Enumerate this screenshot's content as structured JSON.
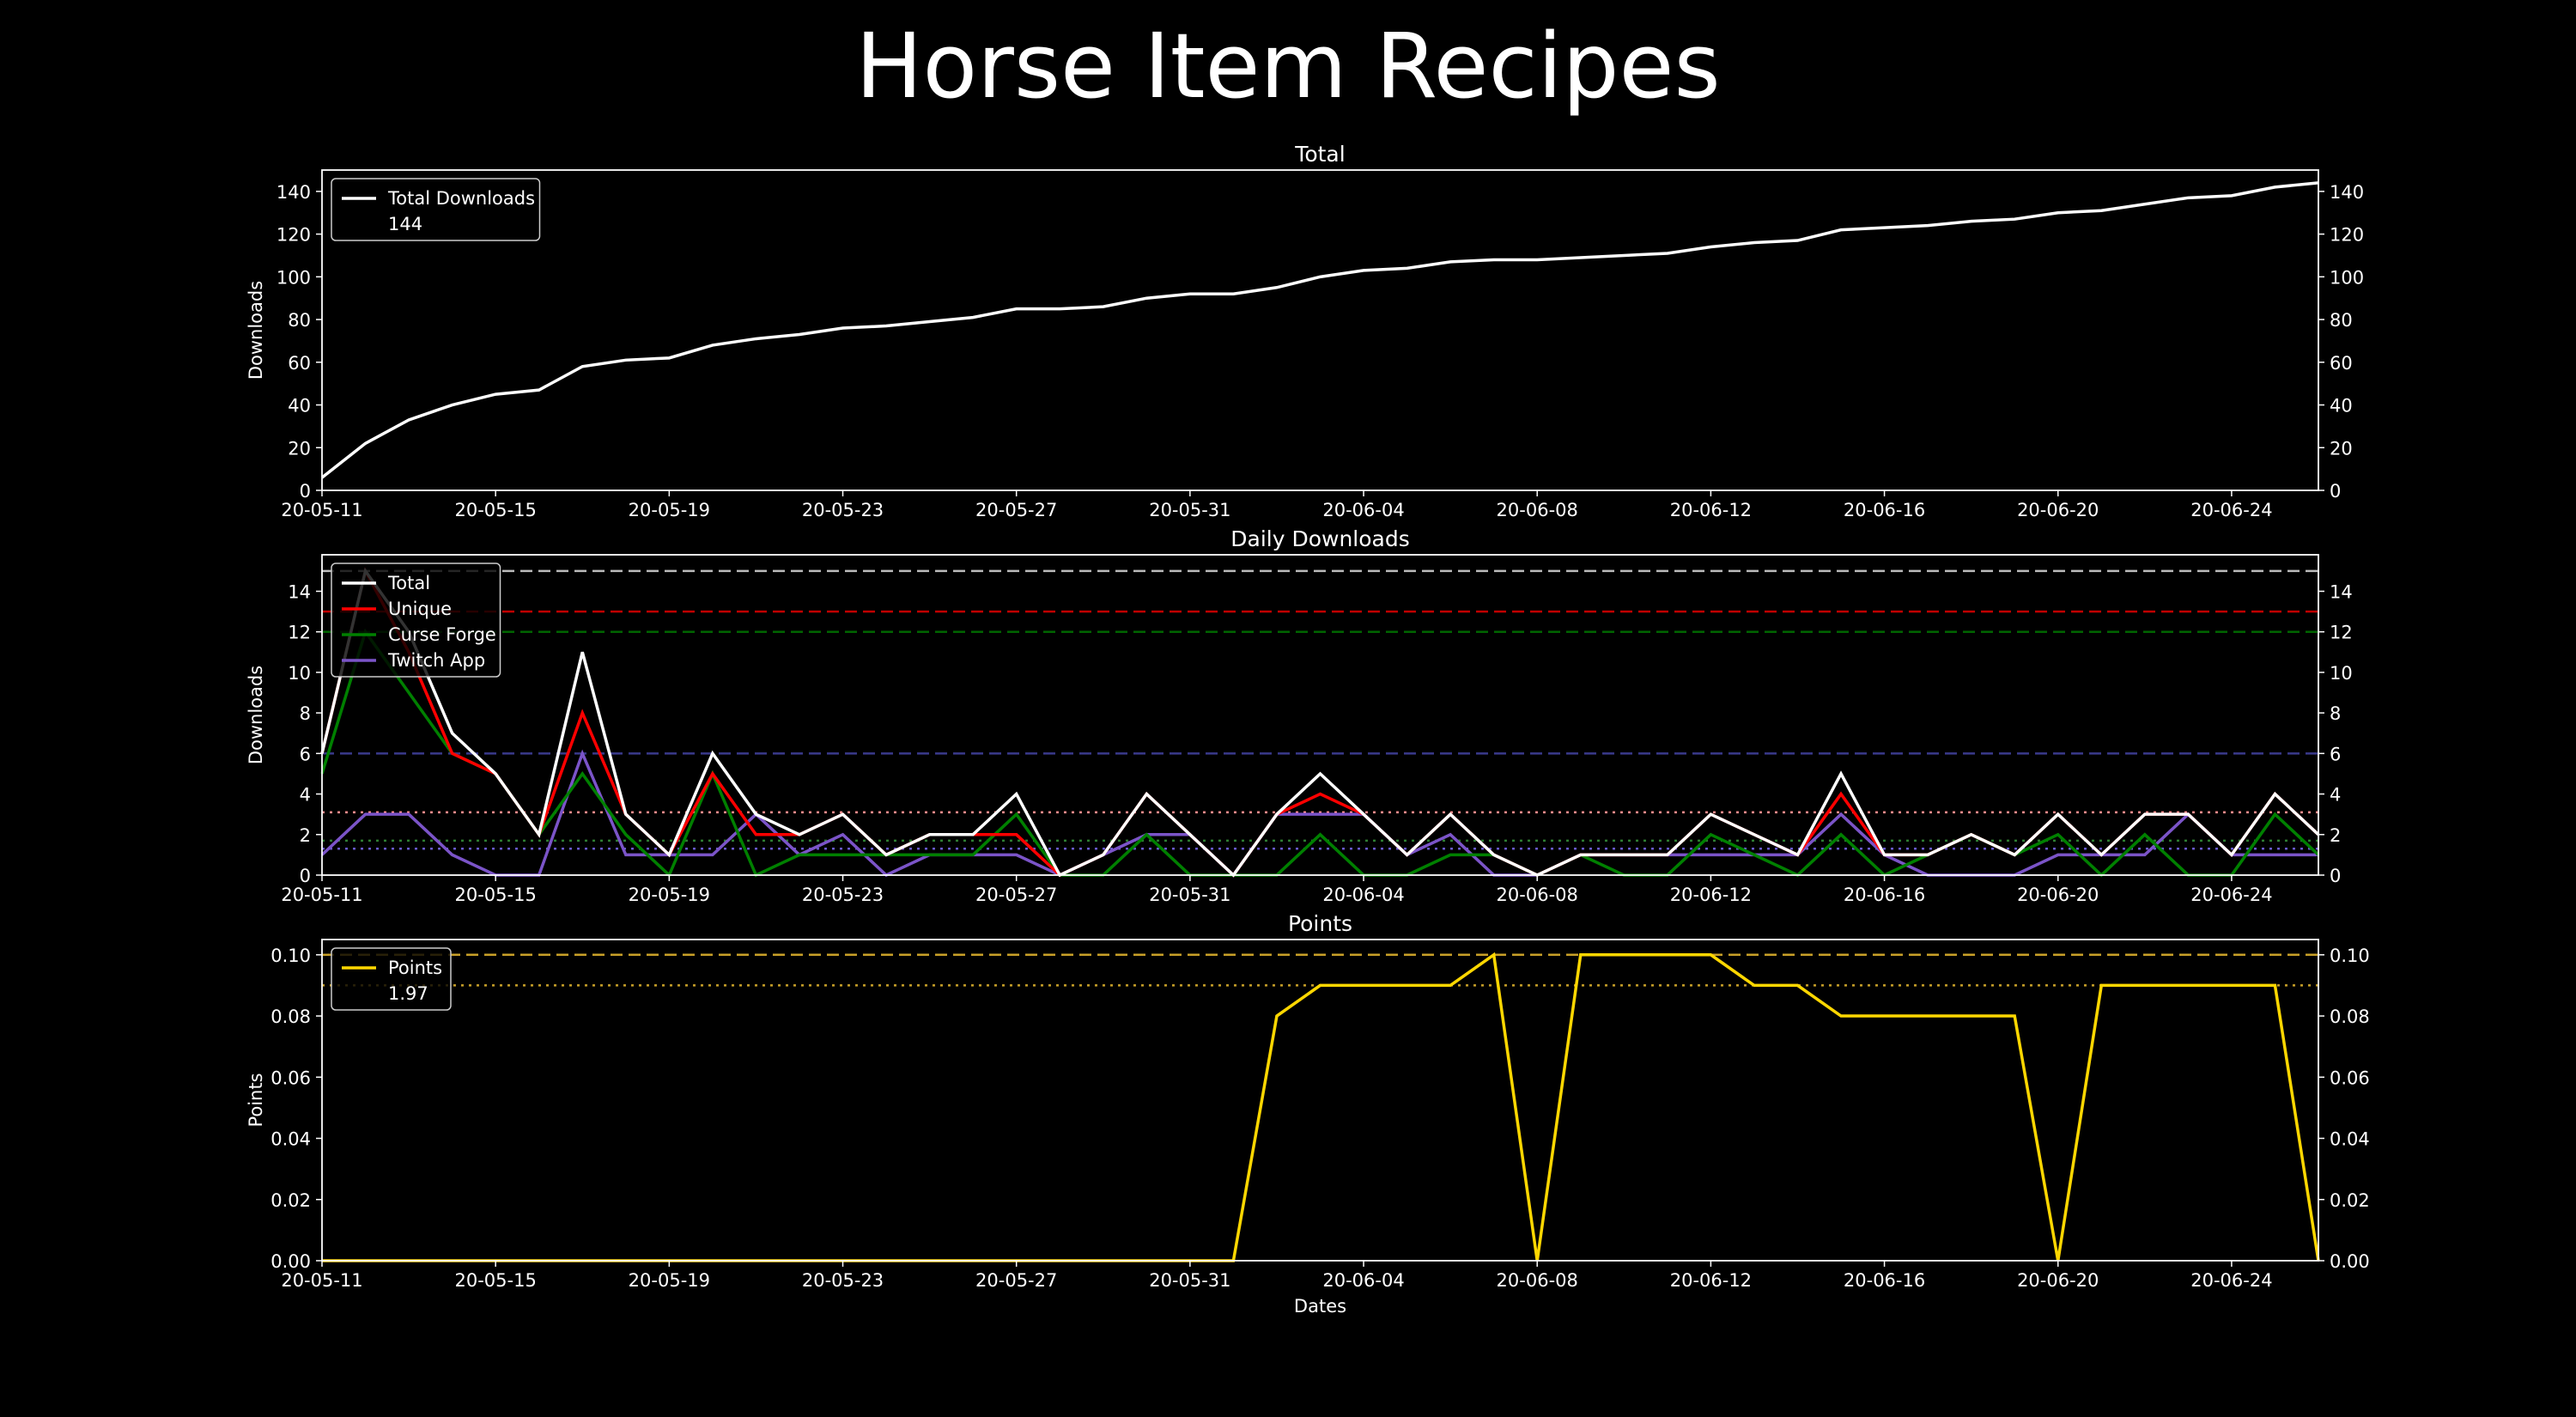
{
  "figure_title": "Horse Item Recipes",
  "chart_data": [
    {
      "type": "line",
      "title": "Total",
      "ylabel": "Downloads",
      "xlabel": "",
      "x_start": "2020-05-11",
      "x_end": "2020-06-26",
      "x_tick_labels": [
        "20-05-11",
        "20-05-15",
        "20-05-19",
        "20-05-23",
        "20-05-27",
        "20-05-31",
        "20-06-04",
        "20-06-08",
        "20-06-12",
        "20-06-16",
        "20-06-20",
        "20-06-24"
      ],
      "ylim": [
        0,
        150
      ],
      "y_ticks": [
        "0",
        "20",
        "40",
        "60",
        "80",
        "100",
        "120",
        "140"
      ],
      "legend": {
        "position": "upper-left",
        "entries": [
          {
            "label": "Total Downloads",
            "value": "144",
            "color": "#ffffff"
          }
        ]
      },
      "series": [
        {
          "name": "Total Downloads",
          "color": "#ffffff",
          "values": [
            6,
            22,
            33,
            40,
            45,
            47,
            58,
            61,
            62,
            68,
            71,
            73,
            76,
            77,
            79,
            81,
            85,
            85,
            86,
            90,
            92,
            92,
            95,
            100,
            103,
            104,
            107,
            108,
            108,
            109,
            110,
            111,
            114,
            116,
            117,
            122,
            123,
            124,
            126,
            127,
            130,
            131,
            134,
            137,
            138,
            142,
            144
          ]
        }
      ],
      "reference_lines": []
    },
    {
      "type": "line",
      "title": "Daily Downloads",
      "ylabel": "Downloads",
      "xlabel": "",
      "x_start": "2020-05-11",
      "x_end": "2020-06-26",
      "x_tick_labels": [
        "20-05-11",
        "20-05-15",
        "20-05-19",
        "20-05-23",
        "20-05-27",
        "20-05-31",
        "20-06-04",
        "20-06-08",
        "20-06-12",
        "20-06-16",
        "20-06-20",
        "20-06-24"
      ],
      "ylim": [
        0,
        15.8
      ],
      "y_ticks": [
        "0",
        "2",
        "4",
        "6",
        "8",
        "10",
        "12",
        "14"
      ],
      "legend": {
        "position": "upper-left",
        "entries": [
          {
            "label": "Total",
            "color": "#ffffff"
          },
          {
            "label": "Unique",
            "color": "#ff0000"
          },
          {
            "label": "Curse Forge",
            "color": "#008000"
          },
          {
            "label": "Twitch App",
            "color": "#7b54c8"
          }
        ]
      },
      "series": [
        {
          "name": "Twitch App",
          "color": "#7b54c8",
          "values": [
            1,
            3,
            3,
            1,
            0,
            0,
            6,
            1,
            1,
            1,
            3,
            1,
            2,
            0,
            1,
            1,
            1,
            0,
            1,
            2,
            2,
            0,
            3,
            3,
            3,
            1,
            2,
            0,
            0,
            1,
            1,
            1,
            1,
            1,
            1,
            3,
            1,
            0,
            0,
            0,
            1,
            1,
            1,
            3,
            1,
            1,
            1
          ]
        },
        {
          "name": "Curse Forge",
          "color": "#008000",
          "values": [
            5,
            12,
            9,
            6,
            5,
            2,
            5,
            2,
            0,
            5,
            0,
            1,
            1,
            1,
            1,
            1,
            3,
            0,
            0,
            2,
            0,
            0,
            0,
            2,
            0,
            0,
            1,
            1,
            0,
            1,
            0,
            0,
            2,
            1,
            0,
            2,
            0,
            1,
            2,
            1,
            2,
            0,
            2,
            0,
            0,
            3,
            1
          ]
        },
        {
          "name": "Unique",
          "color": "#ff0000",
          "values": [
            6,
            15,
            11,
            6,
            5,
            2,
            8,
            3,
            1,
            5,
            2,
            2,
            3,
            1,
            2,
            2,
            2,
            0,
            1,
            4,
            2,
            0,
            3,
            4,
            3,
            1,
            3,
            1,
            0,
            1,
            1,
            1,
            3,
            2,
            1,
            4,
            1,
            1,
            2,
            1,
            3,
            1,
            3,
            3,
            1,
            4,
            2
          ]
        },
        {
          "name": "Total",
          "color": "#ffffff",
          "values": [
            6,
            15,
            12,
            7,
            5,
            2,
            11,
            3,
            1,
            6,
            3,
            2,
            3,
            1,
            2,
            2,
            4,
            0,
            1,
            4,
            2,
            0,
            3,
            5,
            3,
            1,
            3,
            1,
            0,
            1,
            1,
            1,
            3,
            2,
            1,
            5,
            1,
            1,
            2,
            1,
            3,
            1,
            3,
            3,
            1,
            4,
            2
          ]
        }
      ],
      "reference_lines": [
        {
          "value": 15,
          "color": "#bbbbbb",
          "style": "dashed"
        },
        {
          "value": 13,
          "color": "#c00000",
          "style": "dashed"
        },
        {
          "value": 12,
          "color": "#006400",
          "style": "dashed"
        },
        {
          "value": 6,
          "color": "#3a3a8c",
          "style": "dashed"
        },
        {
          "value": 3.1,
          "color": "#ff8c8c",
          "style": "dotted"
        },
        {
          "value": 1.7,
          "color": "#2e7d32",
          "style": "dotted"
        },
        {
          "value": 1.3,
          "color": "#6a5acd",
          "style": "dotted"
        }
      ]
    },
    {
      "type": "line",
      "title": "Points",
      "ylabel": "Points",
      "xlabel": "Dates",
      "x_start": "2020-05-11",
      "x_end": "2020-06-26",
      "x_tick_labels": [
        "20-05-11",
        "20-05-15",
        "20-05-19",
        "20-05-23",
        "20-05-27",
        "20-05-31",
        "20-06-04",
        "20-06-08",
        "20-06-12",
        "20-06-16",
        "20-06-20",
        "20-06-24"
      ],
      "ylim": [
        0,
        0.105
      ],
      "y_ticks": [
        "0.00",
        "0.02",
        "0.04",
        "0.06",
        "0.08",
        "0.10"
      ],
      "legend": {
        "position": "upper-left",
        "entries": [
          {
            "label": "Points",
            "value": "1.97",
            "color": "#ffd700"
          }
        ]
      },
      "series": [
        {
          "name": "Points",
          "color": "#ffd700",
          "values": [
            0,
            0,
            0,
            0,
            0,
            0,
            0,
            0,
            0,
            0,
            0,
            0,
            0,
            0,
            0,
            0,
            0,
            0,
            0,
            0,
            0,
            0,
            0.08,
            0.09,
            0.09,
            0.09,
            0.09,
            0.1,
            0,
            0.1,
            0.1,
            0.1,
            0.1,
            0.09,
            0.09,
            0.08,
            0.08,
            0.08,
            0.08,
            0.08,
            0,
            0.09,
            0.09,
            0.09,
            0.09,
            0.09,
            0
          ]
        }
      ],
      "reference_lines": [
        {
          "value": 0.1,
          "color": "#c8a028",
          "style": "dashed"
        },
        {
          "value": 0.09,
          "color": "#c8a028",
          "style": "dotted"
        }
      ]
    }
  ]
}
